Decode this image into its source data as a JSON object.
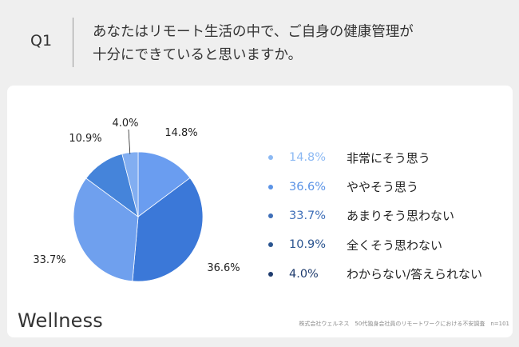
{
  "header": {
    "question_label": "Q1",
    "question_line1": "あなたはリモート生活の中で、ご自身の健康管理が",
    "question_line2": "十分にできていると思いますか。"
  },
  "chart_data": {
    "type": "pie",
    "title": "",
    "legend_position": "right",
    "slices": [
      {
        "label": "非常にそう思う",
        "value": 14.8,
        "value_label": "14.8%",
        "color": "#6a9df0",
        "legend_color": "#8cb9f3"
      },
      {
        "label": "ややそう思う",
        "value": 36.6,
        "value_label": "36.6%",
        "color": "#3b78d8",
        "legend_color": "#5b93e6"
      },
      {
        "label": "あまりそう思わない",
        "value": 33.7,
        "value_label": "33.7%",
        "color": "#6fa0ee",
        "legend_color": "#3f6fb8"
      },
      {
        "label": "全くそう思わない",
        "value": 10.9,
        "value_label": "10.9%",
        "color": "#4584da",
        "legend_color": "#2b5590"
      },
      {
        "label": "わからない/答えられない",
        "value": 4.0,
        "value_label": "4.0%",
        "color": "#82aef1",
        "legend_color": "#1f3c6e"
      }
    ]
  },
  "footer": {
    "brand": "Wellness",
    "source": "株式会社ウェルネス　50代独身会社員のリモートワークにおける不安調査　n=101"
  }
}
